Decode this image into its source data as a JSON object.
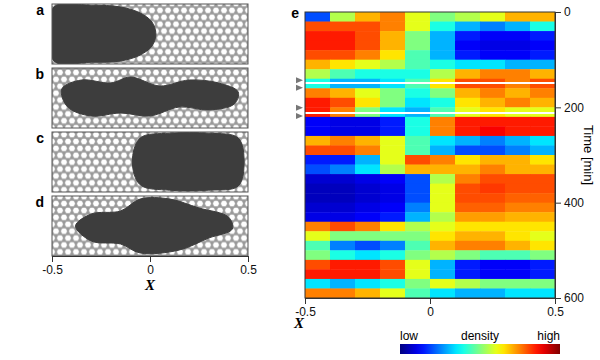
{
  "chart_data": [
    {
      "type": "particles",
      "title": "a",
      "xlim": [
        -0.5,
        0.5
      ],
      "tick_labels": false,
      "dense_region": [
        [
          -0.49,
          0.05
        ],
        [
          -0.3,
          0.02
        ],
        [
          -0.15,
          0.05
        ],
        [
          -0.05,
          0.15
        ],
        [
          0.01,
          0.3
        ],
        [
          0.03,
          0.5
        ],
        [
          0.01,
          0.7
        ],
        [
          -0.05,
          0.85
        ],
        [
          -0.15,
          0.95
        ],
        [
          -0.3,
          0.97
        ],
        [
          -0.49,
          0.95
        ]
      ]
    },
    {
      "type": "particles",
      "title": "b",
      "xlim": [
        -0.5,
        0.5
      ],
      "tick_labels": false,
      "dense_region": [
        [
          -0.45,
          0.35
        ],
        [
          -0.35,
          0.2
        ],
        [
          -0.2,
          0.25
        ],
        [
          -0.1,
          0.15
        ],
        [
          0.05,
          0.3
        ],
        [
          0.2,
          0.2
        ],
        [
          0.35,
          0.25
        ],
        [
          0.45,
          0.4
        ],
        [
          0.43,
          0.6
        ],
        [
          0.3,
          0.7
        ],
        [
          0.15,
          0.65
        ],
        [
          0.0,
          0.8
        ],
        [
          -0.15,
          0.75
        ],
        [
          -0.3,
          0.8
        ],
        [
          -0.42,
          0.65
        ]
      ]
    },
    {
      "type": "particles",
      "title": "c",
      "xlim": [
        -0.5,
        0.5
      ],
      "tick_labels": false,
      "dense_region": [
        [
          -0.05,
          0.1
        ],
        [
          0.1,
          0.02
        ],
        [
          0.3,
          0.02
        ],
        [
          0.45,
          0.1
        ],
        [
          0.48,
          0.5
        ],
        [
          0.45,
          0.9
        ],
        [
          0.3,
          0.97
        ],
        [
          0.1,
          0.97
        ],
        [
          -0.05,
          0.88
        ],
        [
          -0.09,
          0.5
        ]
      ]
    },
    {
      "type": "particles",
      "title": "d",
      "xlim": [
        -0.5,
        0.5
      ],
      "xticks": [
        -0.5,
        0,
        0.5
      ],
      "xlabel": "X",
      "dense_region": [
        [
          -0.38,
          0.5
        ],
        [
          -0.3,
          0.3
        ],
        [
          -0.15,
          0.25
        ],
        [
          -0.05,
          0.05
        ],
        [
          0.1,
          0.05
        ],
        [
          0.25,
          0.2
        ],
        [
          0.4,
          0.35
        ],
        [
          0.42,
          0.55
        ],
        [
          0.3,
          0.7
        ],
        [
          0.15,
          0.9
        ],
        [
          -0.05,
          0.95
        ],
        [
          -0.15,
          0.8
        ],
        [
          -0.3,
          0.75
        ]
      ]
    },
    {
      "type": "heatmap",
      "title": "e",
      "xlabel": "X",
      "ylabel": "Time [min]",
      "xlim": [
        -0.5,
        0.5
      ],
      "xticks": [
        -0.5,
        0,
        0.5
      ],
      "ylim": [
        0,
        600
      ],
      "yticks": [
        0,
        200,
        400,
        600
      ],
      "x_edges": [
        -0.5,
        -0.4,
        -0.3,
        -0.2,
        -0.1,
        0,
        0.1,
        0.2,
        0.3,
        0.4,
        0.5
      ],
      "y_edges": [
        0,
        20,
        40,
        60,
        80,
        100,
        120,
        140,
        160,
        180,
        200,
        220,
        240,
        260,
        280,
        300,
        320,
        340,
        360,
        380,
        400,
        420,
        440,
        460,
        480,
        500,
        520,
        540,
        560,
        580,
        600
      ],
      "cells": [
        [
          0.2,
          0.55,
          0.7,
          0.75,
          0.6,
          0.5,
          0.55,
          0.6,
          0.7,
          0.7
        ],
        [
          0.8,
          0.8,
          0.8,
          0.75,
          0.6,
          0.4,
          0.3,
          0.25,
          0.3,
          0.4
        ],
        [
          0.85,
          0.85,
          0.8,
          0.7,
          0.5,
          0.3,
          0.15,
          0.12,
          0.12,
          0.15
        ],
        [
          0.85,
          0.85,
          0.8,
          0.7,
          0.5,
          0.3,
          0.12,
          0.1,
          0.1,
          0.12
        ],
        [
          0.8,
          0.8,
          0.75,
          0.65,
          0.45,
          0.3,
          0.15,
          0.12,
          0.12,
          0.15
        ],
        [
          0.7,
          0.65,
          0.6,
          0.55,
          0.45,
          0.4,
          0.35,
          0.35,
          0.3,
          0.3
        ],
        [
          0.55,
          0.45,
          0.4,
          0.4,
          0.4,
          0.55,
          0.7,
          0.75,
          0.75,
          0.7
        ],
        [
          0.4,
          0.3,
          0.3,
          0.35,
          0.45,
          0.65,
          0.8,
          0.8,
          0.75,
          0.8
        ],
        [
          0.75,
          0.7,
          0.6,
          0.5,
          0.4,
          0.5,
          0.7,
          0.75,
          0.7,
          0.75
        ],
        [
          0.85,
          0.8,
          0.65,
          0.5,
          0.35,
          0.4,
          0.65,
          0.7,
          0.75,
          0.7
        ],
        [
          0.85,
          0.75,
          0.5,
          0.35,
          0.3,
          0.45,
          0.6,
          0.65,
          0.6,
          0.6
        ],
        [
          0.12,
          0.1,
          0.1,
          0.15,
          0.4,
          0.75,
          0.85,
          0.85,
          0.85,
          0.85
        ],
        [
          0.12,
          0.1,
          0.1,
          0.15,
          0.4,
          0.75,
          0.85,
          0.88,
          0.85,
          0.85
        ],
        [
          0.7,
          0.75,
          0.7,
          0.6,
          0.45,
          0.35,
          0.3,
          0.25,
          0.3,
          0.35
        ],
        [
          0.8,
          0.8,
          0.75,
          0.6,
          0.45,
          0.3,
          0.2,
          0.2,
          0.25,
          0.3
        ],
        [
          0.15,
          0.15,
          0.3,
          0.6,
          0.8,
          0.75,
          0.65,
          0.7,
          0.7,
          0.65
        ],
        [
          0.2,
          0.25,
          0.35,
          0.55,
          0.7,
          0.7,
          0.7,
          0.75,
          0.7,
          0.7
        ],
        [
          0.08,
          0.08,
          0.1,
          0.12,
          0.2,
          0.55,
          0.75,
          0.8,
          0.8,
          0.8
        ],
        [
          0.06,
          0.06,
          0.08,
          0.1,
          0.2,
          0.6,
          0.8,
          0.82,
          0.8,
          0.8
        ],
        [
          0.06,
          0.06,
          0.08,
          0.1,
          0.2,
          0.6,
          0.8,
          0.8,
          0.78,
          0.78
        ],
        [
          0.08,
          0.08,
          0.1,
          0.12,
          0.25,
          0.6,
          0.78,
          0.78,
          0.75,
          0.75
        ],
        [
          0.1,
          0.1,
          0.12,
          0.15,
          0.3,
          0.55,
          0.72,
          0.72,
          0.7,
          0.7
        ],
        [
          0.75,
          0.8,
          0.75,
          0.65,
          0.55,
          0.6,
          0.65,
          0.65,
          0.65,
          0.65
        ],
        [
          0.6,
          0.5,
          0.5,
          0.5,
          0.5,
          0.65,
          0.7,
          0.7,
          0.65,
          0.6
        ],
        [
          0.45,
          0.25,
          0.2,
          0.25,
          0.45,
          0.7,
          0.75,
          0.75,
          0.7,
          0.65
        ],
        [
          0.5,
          0.4,
          0.35,
          0.4,
          0.5,
          0.55,
          0.5,
          0.45,
          0.45,
          0.5
        ],
        [
          0.8,
          0.85,
          0.85,
          0.8,
          0.6,
          0.3,
          0.15,
          0.12,
          0.12,
          0.15
        ],
        [
          0.85,
          0.85,
          0.85,
          0.8,
          0.6,
          0.3,
          0.15,
          0.12,
          0.12,
          0.15
        ],
        [
          0.35,
          0.3,
          0.35,
          0.4,
          0.5,
          0.6,
          0.55,
          0.5,
          0.5,
          0.5
        ],
        [
          0.75,
          0.75,
          0.7,
          0.6,
          0.45,
          0.35,
          0.3,
          0.3,
          0.35,
          0.35
        ]
      ],
      "marker_times": [
        143,
        159,
        201,
        218
      ],
      "line_times": [
        149,
        212
      ],
      "colorbar": {
        "label": "density",
        "range": [
          0,
          1
        ],
        "ticks": [
          {
            "value": 0,
            "label": "low"
          },
          {
            "value": 1,
            "label": "high"
          }
        ]
      }
    }
  ]
}
